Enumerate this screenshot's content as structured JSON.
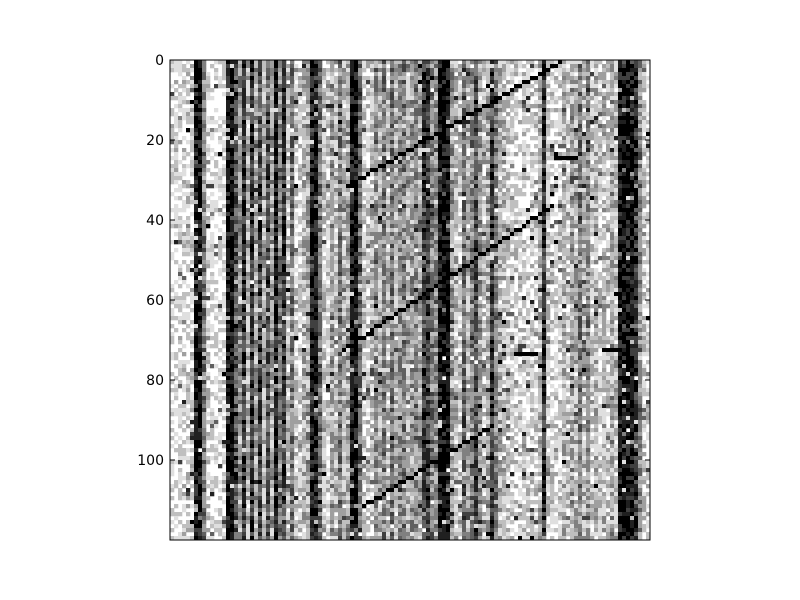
{
  "chart_data": {
    "type": "heatmap",
    "title": "",
    "xlabel": "",
    "ylabel": "",
    "colormap": "gray_r",
    "n_rows": 120,
    "n_cols": 120,
    "ylim": [
      120,
      0
    ],
    "y_ticks": [
      0,
      20,
      40,
      60,
      80,
      100
    ],
    "y_tick_labels": [
      "0",
      "20",
      "40",
      "60",
      "80",
      "100"
    ],
    "x_tick_labels": [],
    "grid": false,
    "colors": {
      "low": "#ffffff",
      "high": "#000000",
      "frame": "#000000"
    },
    "column_profile": [
      0.06,
      0.05,
      0.08,
      0.1,
      0.12,
      0.15,
      0.97,
      0.99,
      0.55,
      0.12,
      0.05,
      0.04,
      0.06,
      0.08,
      0.95,
      0.98,
      0.7,
      0.4,
      0.85,
      0.3,
      0.82,
      0.35,
      0.75,
      0.3,
      0.72,
      0.35,
      0.92,
      0.5,
      0.8,
      0.25,
      0.55,
      0.2,
      0.15,
      0.3,
      0.35,
      0.9,
      0.95,
      0.55,
      0.2,
      0.15,
      0.35,
      0.25,
      0.55,
      0.3,
      0.35,
      0.95,
      0.98,
      0.6,
      0.2,
      0.15,
      0.25,
      0.45,
      0.3,
      0.5,
      0.25,
      0.55,
      0.3,
      0.45,
      0.5,
      0.35,
      0.4,
      0.45,
      0.35,
      0.8,
      0.75,
      0.5,
      0.45,
      0.96,
      0.99,
      0.97,
      0.4,
      0.25,
      0.2,
      0.6,
      0.3,
      0.5,
      0.75,
      0.4,
      0.2,
      0.35,
      0.8,
      0.5,
      0.3,
      0.25,
      0.2,
      0.15,
      0.12,
      0.1,
      0.15,
      0.1,
      0.1,
      0.12,
      0.3,
      0.85,
      0.2,
      0.1,
      0.12,
      0.15,
      0.3,
      0.2,
      0.35,
      0.3,
      0.55,
      0.25,
      0.45,
      0.2,
      0.3,
      0.15,
      0.25,
      0.2,
      0.35,
      0.25,
      0.95,
      0.99,
      0.99,
      0.97,
      0.85,
      0.45,
      0.2,
      0.1
    ],
    "diagonal_traces": [
      {
        "r0": 0,
        "c0": 97,
        "r1": 31,
        "c1": 44
      },
      {
        "r0": 36,
        "c0": 95,
        "r1": 72,
        "c1": 43
      },
      {
        "r0": 91,
        "c0": 80,
        "r1": 111,
        "c1": 48
      }
    ],
    "horizontal_streaks": [
      {
        "row": 24,
        "c0": 96,
        "c1": 101
      },
      {
        "row": 73,
        "c0": 86,
        "c1": 91
      },
      {
        "row": 72,
        "c0": 108,
        "c1": 112
      }
    ]
  }
}
